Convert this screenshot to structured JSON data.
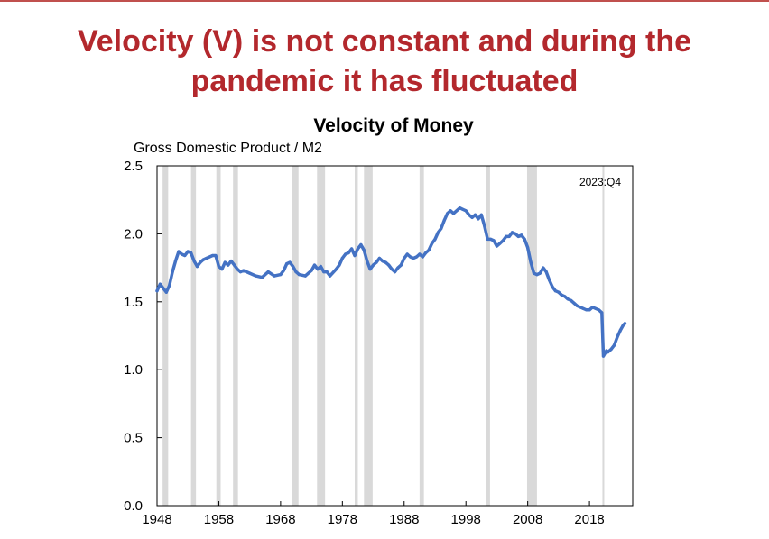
{
  "slide": {
    "title_line1": "Velocity (V) is not constant and during the",
    "title_line2": "pandemic it has fluctuated"
  },
  "chart_data": {
    "type": "line",
    "title": "Velocity of Money",
    "subtitle": "Gross Domestic Product / M2",
    "annotation": "2023:Q4",
    "xlim": [
      1948,
      2025
    ],
    "ylim": [
      0,
      2.5
    ],
    "x_ticks": [
      1948,
      1958,
      1968,
      1978,
      1988,
      1998,
      2008,
      2018
    ],
    "x_tick_labels": [
      "1948",
      "1958",
      "1968",
      "1978",
      "1988",
      "1998",
      "2008",
      "2018"
    ],
    "y_ticks": [
      0,
      0.5,
      1.0,
      1.5,
      2.0,
      2.5
    ],
    "y_tick_labels": [
      "0.0",
      "0.5",
      "1.0",
      "1.5",
      "2.0",
      "2.5"
    ],
    "grid": false,
    "line_color": "#4472c4",
    "recession_color": "#d9d9d9",
    "recessions": [
      [
        1948.9,
        1949.8
      ],
      [
        1953.5,
        1954.3
      ],
      [
        1957.6,
        1958.3
      ],
      [
        1960.3,
        1961.1
      ],
      [
        1969.9,
        1970.9
      ],
      [
        1973.9,
        1975.2
      ],
      [
        1980.0,
        1980.5
      ],
      [
        1981.5,
        1982.9
      ],
      [
        1990.5,
        1991.2
      ],
      [
        2001.2,
        2001.9
      ],
      [
        2007.9,
        2009.5
      ],
      [
        2020.1,
        2020.3
      ]
    ],
    "series": [
      {
        "x": [
          1948.0,
          1948.5,
          1949.0,
          1949.5,
          1950.0,
          1950.5,
          1951.0,
          1951.5,
          1952.0,
          1952.5,
          1953.0,
          1953.5,
          1954.0,
          1954.5,
          1955.0,
          1955.5,
          1956.0,
          1956.5,
          1957.0,
          1957.5,
          1958.0,
          1958.5,
          1959.0,
          1959.5,
          1960.0,
          1960.5,
          1961.0,
          1961.5,
          1962.0,
          1963.0,
          1964.0,
          1965.0,
          1966.0,
          1967.0,
          1968.0,
          1968.5,
          1969.0,
          1969.5,
          1970.0,
          1970.5,
          1971.0,
          1972.0,
          1973.0,
          1973.5,
          1974.0,
          1974.5,
          1975.0,
          1975.5,
          1976.0,
          1977.0,
          1977.5,
          1978.0,
          1978.5,
          1979.0,
          1979.5,
          1980.0,
          1980.5,
          1981.0,
          1981.5,
          1982.0,
          1982.5,
          1983.0,
          1983.5,
          1984.0,
          1984.5,
          1985.0,
          1985.5,
          1986.0,
          1986.5,
          1987.0,
          1987.5,
          1988.0,
          1988.5,
          1989.0,
          1989.5,
          1990.0,
          1990.5,
          1991.0,
          1991.5,
          1992.0,
          1992.5,
          1993.0,
          1993.5,
          1994.0,
          1994.5,
          1995.0,
          1995.5,
          1996.0,
          1996.5,
          1997.0,
          1997.5,
          1998.0,
          1998.5,
          1999.0,
          1999.5,
          2000.0,
          2000.5,
          2001.0,
          2001.5,
          2002.0,
          2002.5,
          2003.0,
          2003.5,
          2004.0,
          2004.5,
          2005.0,
          2005.5,
          2006.0,
          2006.5,
          2007.0,
          2007.5,
          2008.0,
          2008.5,
          2009.0,
          2009.5,
          2010.0,
          2010.5,
          2011.0,
          2011.5,
          2012.0,
          2012.5,
          2013.0,
          2013.5,
          2014.0,
          2014.5,
          2015.0,
          2015.5,
          2016.0,
          2016.5,
          2017.0,
          2017.5,
          2018.0,
          2018.5,
          2019.0,
          2019.5,
          2019.75,
          2020.0,
          2020.25,
          2020.5,
          2020.75,
          2021.0,
          2021.5,
          2022.0,
          2022.5,
          2023.0,
          2023.5,
          2023.75
        ],
        "y": [
          1.58,
          1.63,
          1.6,
          1.57,
          1.62,
          1.72,
          1.8,
          1.87,
          1.85,
          1.84,
          1.87,
          1.86,
          1.8,
          1.76,
          1.79,
          1.81,
          1.82,
          1.83,
          1.84,
          1.84,
          1.76,
          1.74,
          1.79,
          1.77,
          1.8,
          1.77,
          1.74,
          1.72,
          1.73,
          1.71,
          1.69,
          1.68,
          1.72,
          1.69,
          1.7,
          1.73,
          1.78,
          1.79,
          1.76,
          1.72,
          1.7,
          1.69,
          1.73,
          1.77,
          1.74,
          1.76,
          1.72,
          1.72,
          1.69,
          1.74,
          1.77,
          1.82,
          1.85,
          1.86,
          1.89,
          1.84,
          1.89,
          1.92,
          1.88,
          1.8,
          1.74,
          1.77,
          1.79,
          1.82,
          1.8,
          1.79,
          1.77,
          1.74,
          1.72,
          1.75,
          1.77,
          1.82,
          1.85,
          1.83,
          1.82,
          1.83,
          1.85,
          1.83,
          1.86,
          1.88,
          1.93,
          1.96,
          2.01,
          2.04,
          2.1,
          2.15,
          2.17,
          2.15,
          2.17,
          2.19,
          2.18,
          2.17,
          2.14,
          2.12,
          2.14,
          2.11,
          2.14,
          2.06,
          1.96,
          1.96,
          1.95,
          1.91,
          1.93,
          1.95,
          1.98,
          1.98,
          2.01,
          2.0,
          1.98,
          1.99,
          1.96,
          1.9,
          1.79,
          1.71,
          1.7,
          1.71,
          1.75,
          1.72,
          1.66,
          1.61,
          1.58,
          1.57,
          1.55,
          1.54,
          1.52,
          1.51,
          1.49,
          1.47,
          1.46,
          1.45,
          1.44,
          1.44,
          1.46,
          1.45,
          1.44,
          1.43,
          1.42,
          1.1,
          1.12,
          1.14,
          1.13,
          1.15,
          1.18,
          1.24,
          1.29,
          1.33,
          1.34
        ]
      }
    ]
  }
}
